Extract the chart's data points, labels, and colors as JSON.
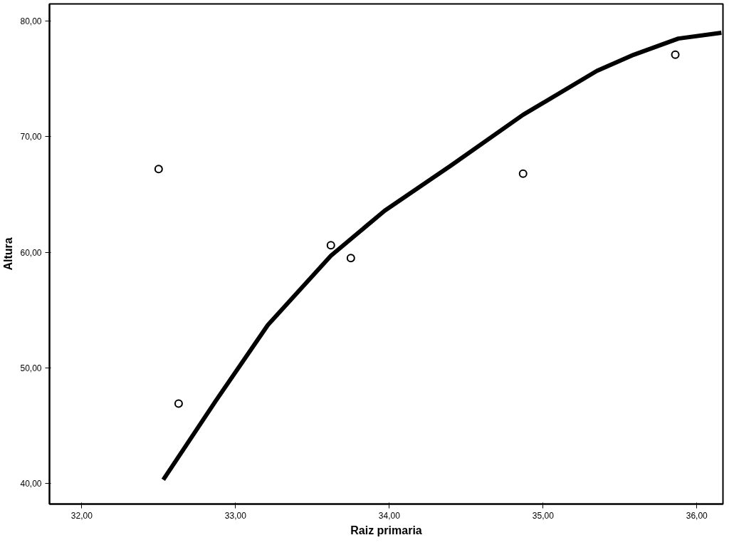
{
  "chart_data": {
    "type": "scatter",
    "xlabel": "Raiz primaria",
    "ylabel": "Altura",
    "xlim": [
      31.79,
      36.17
    ],
    "ylim": [
      38.2,
      81.5
    ],
    "xticks": [
      {
        "value": 32,
        "label": "32,00"
      },
      {
        "value": 33,
        "label": "33,00"
      },
      {
        "value": 34,
        "label": "34,00"
      },
      {
        "value": 35,
        "label": "35,00"
      },
      {
        "value": 36,
        "label": "36,00"
      }
    ],
    "yticks": [
      {
        "value": 40,
        "label": "40,00"
      },
      {
        "value": 50,
        "label": "50,00"
      },
      {
        "value": 60,
        "label": "60,00"
      },
      {
        "value": 70,
        "label": "70,00"
      },
      {
        "value": 80,
        "label": "80,00"
      }
    ],
    "grid": false,
    "series": [
      {
        "marker": "circle",
        "color": "#000000",
        "x": [
          32.5,
          32.63,
          33.62,
          33.75,
          34.87,
          35.86
        ],
        "values": [
          67.2,
          46.9,
          60.6,
          59.5,
          66.8,
          77.1
        ]
      },
      {
        "type": "line",
        "marker": "none",
        "color": "#000000",
        "x": [
          32.53,
          32.87,
          33.21,
          33.62,
          33.97,
          34.4,
          34.87,
          35.35,
          35.59,
          35.88,
          36.16
        ],
        "values": [
          40.3,
          47.1,
          53.7,
          59.7,
          63.6,
          67.5,
          71.9,
          75.7,
          77.1,
          78.5,
          79.0
        ]
      }
    ]
  }
}
